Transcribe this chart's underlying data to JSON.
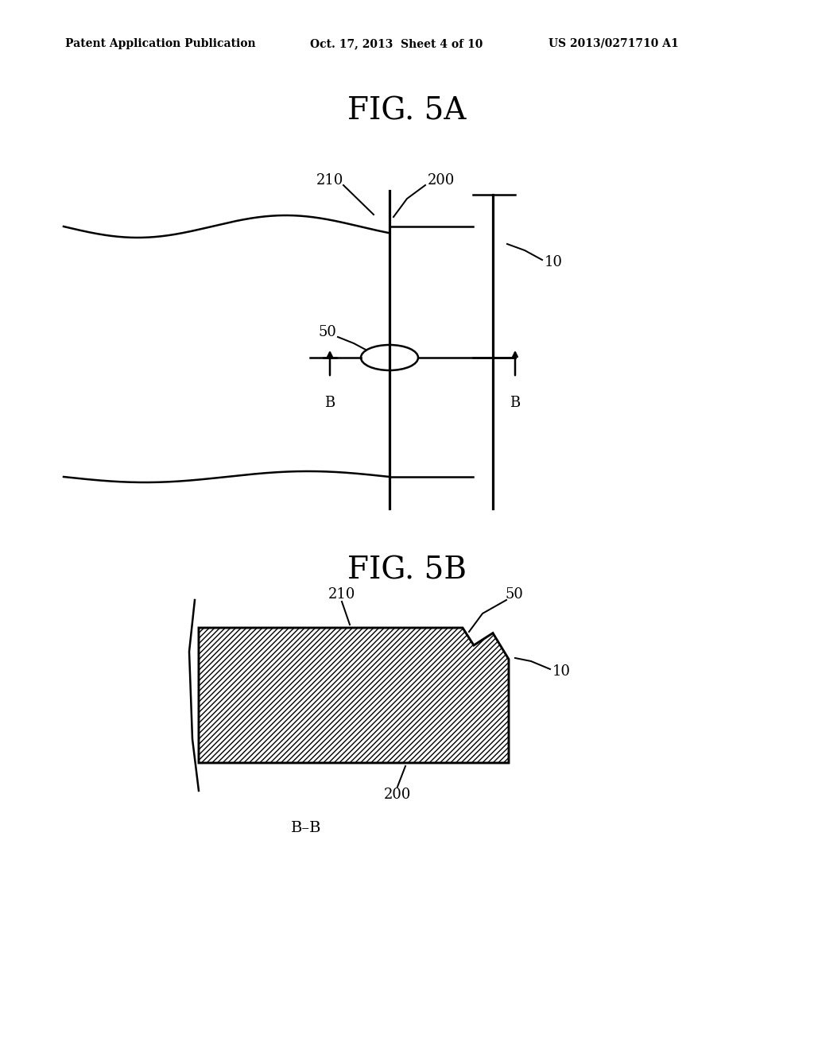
{
  "bg_color": "#ffffff",
  "text_color": "#000000",
  "line_color": "#000000",
  "header_left": "Patent Application Publication",
  "header_mid": "Oct. 17, 2013  Sheet 4 of 10",
  "header_right": "US 2013/0271710 A1",
  "fig5a_title": "FIG. 5A",
  "fig5b_title": "FIG. 5B",
  "label_bb": "B–B"
}
